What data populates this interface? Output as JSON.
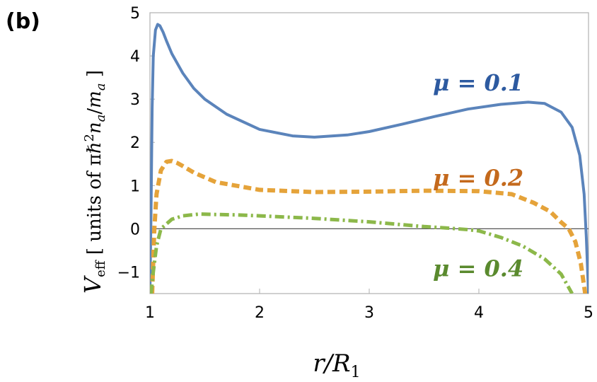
{
  "panel_label": "(b)",
  "chart_data": {
    "type": "line",
    "xlabel": "r/R₁",
    "ylabel": "V_eff [ units of πℏ²n_a/m_a ]",
    "xlim": [
      1,
      5
    ],
    "ylim": [
      -1.5,
      5
    ],
    "x_ticks": [
      "1",
      "2",
      "3",
      "4",
      "5"
    ],
    "y_ticks": [
      "5",
      "4",
      "3",
      "2",
      "1",
      "0",
      "−1"
    ],
    "grid": false,
    "series": [
      {
        "name": "μ = 0.1",
        "color": "#5b84bb",
        "style": "solid",
        "x": [
          1.0,
          1.01,
          1.02,
          1.03,
          1.05,
          1.07,
          1.09,
          1.12,
          1.15,
          1.2,
          1.3,
          1.4,
          1.5,
          1.7,
          2.0,
          2.3,
          2.5,
          2.8,
          3.0,
          3.3,
          3.6,
          3.9,
          4.2,
          4.45,
          4.6,
          4.75,
          4.85,
          4.92,
          4.96,
          4.98,
          5.0
        ],
        "y": [
          -1.5,
          0.5,
          2.8,
          4.0,
          4.6,
          4.73,
          4.7,
          4.55,
          4.35,
          4.05,
          3.6,
          3.25,
          3.0,
          2.65,
          2.3,
          2.15,
          2.12,
          2.17,
          2.25,
          2.42,
          2.6,
          2.77,
          2.88,
          2.93,
          2.9,
          2.7,
          2.35,
          1.7,
          0.8,
          -0.2,
          -1.5
        ]
      },
      {
        "name": "μ = 0.2",
        "color": "#e5a33a",
        "style": "dashed",
        "x": [
          1.02,
          1.04,
          1.06,
          1.1,
          1.15,
          1.2,
          1.25,
          1.3,
          1.4,
          1.6,
          2.0,
          2.5,
          3.0,
          3.5,
          4.0,
          4.3,
          4.5,
          4.65,
          4.75,
          4.82,
          4.88,
          4.93,
          4.97
        ],
        "y": [
          -1.5,
          0.0,
          0.8,
          1.35,
          1.55,
          1.57,
          1.52,
          1.45,
          1.3,
          1.08,
          0.9,
          0.85,
          0.86,
          0.88,
          0.87,
          0.8,
          0.6,
          0.4,
          0.15,
          0.0,
          -0.3,
          -0.8,
          -1.5
        ]
      },
      {
        "name": "μ = 0.4",
        "color": "#8cb84a",
        "style": "dashdot",
        "x": [
          1.01,
          1.03,
          1.06,
          1.1,
          1.2,
          1.3,
          1.45,
          1.6,
          1.8,
          2.0,
          2.5,
          3.0,
          3.5,
          3.7,
          3.8,
          3.9,
          4.0,
          4.2,
          4.4,
          4.6,
          4.75,
          4.85
        ],
        "y": [
          -1.5,
          -1.0,
          -0.4,
          0.0,
          0.22,
          0.3,
          0.34,
          0.33,
          0.32,
          0.3,
          0.24,
          0.16,
          0.05,
          0.02,
          0.0,
          -0.02,
          -0.05,
          -0.2,
          -0.4,
          -0.7,
          -1.05,
          -1.5
        ]
      }
    ],
    "labels": [
      {
        "text": "μ = 0.1",
        "color": "#2d5aa0",
        "x": 3.4,
        "y": 3.2
      },
      {
        "text": "μ = 0.2",
        "color": "#c4691c",
        "x": 3.4,
        "y": 1.0
      },
      {
        "text": "μ = 0.4",
        "color": "#5a8a2e",
        "x": 3.4,
        "y": -1.1
      }
    ]
  }
}
